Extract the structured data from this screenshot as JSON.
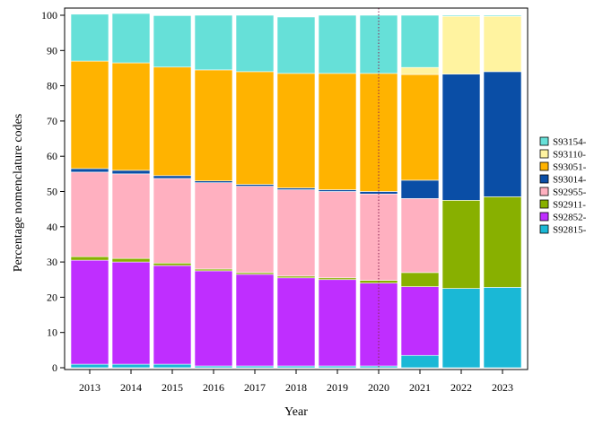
{
  "chart_data": {
    "type": "bar",
    "stacked": true,
    "xlabel": "Year",
    "ylabel": "Percentage nomenclature codes",
    "ylim": [
      0,
      100
    ],
    "yticks": [
      0,
      10,
      20,
      30,
      40,
      50,
      60,
      70,
      80,
      90,
      100
    ],
    "categories": [
      "2013",
      "2014",
      "2015",
      "2016",
      "2017",
      "2018",
      "2019",
      "2020",
      "2021",
      "2022",
      "2023"
    ],
    "reference_line": {
      "x": "2020",
      "style": "dotted",
      "color": "#8b2252"
    },
    "legend_position": "right",
    "series": [
      {
        "name": "S92815-",
        "color": "#1ab8d6",
        "values": [
          1,
          1,
          1,
          0.5,
          0.5,
          0.5,
          0.5,
          0.5,
          3.5,
          22.5,
          22.8
        ]
      },
      {
        "name": "S92852-",
        "color": "#bf2eff",
        "values": [
          29.5,
          29,
          28,
          27,
          26,
          25,
          24.5,
          23.5,
          19.5,
          0,
          0
        ]
      },
      {
        "name": "S92911-",
        "color": "#88b000",
        "values": [
          1,
          1,
          0.7,
          0.5,
          0.5,
          0.5,
          0.5,
          0.8,
          4,
          25,
          25.7
        ]
      },
      {
        "name": "S92955-",
        "color": "#ffb0c0",
        "values": [
          24,
          24,
          24,
          24.5,
          24.5,
          24.5,
          24.5,
          24.5,
          21,
          0,
          0
        ]
      },
      {
        "name": "S93014-",
        "color": "#0a4ea6",
        "values": [
          1,
          1,
          0.8,
          0.5,
          0.5,
          0.5,
          0.5,
          0.7,
          5.2,
          35.8,
          35.5
        ]
      },
      {
        "name": "S93051-",
        "color": "#ffb300",
        "values": [
          30.5,
          30.5,
          30.8,
          31.5,
          32,
          32.5,
          33,
          33.5,
          30,
          0,
          0
        ]
      },
      {
        "name": "S93110-",
        "color": "#fff3a0",
        "values": [
          0,
          0,
          0,
          0,
          0,
          0,
          0,
          0,
          2,
          16.4,
          15.7
        ]
      },
      {
        "name": "S93154-",
        "color": "#66e0d8",
        "values": [
          13.3,
          14,
          14.6,
          15.5,
          16,
          16,
          16.5,
          16.5,
          14.8,
          0.3,
          0.3
        ]
      }
    ]
  }
}
